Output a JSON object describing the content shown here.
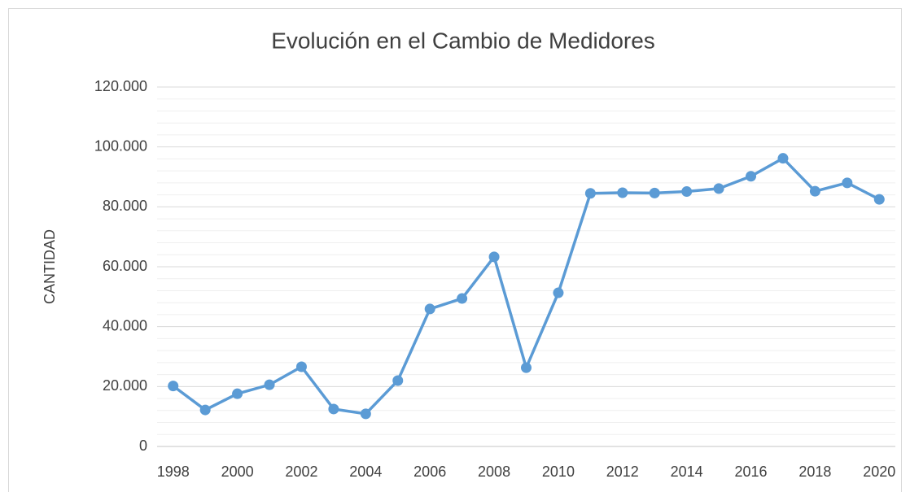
{
  "chart_data": {
    "type": "line",
    "title": "Evolución en el Cambio de Medidores",
    "y_label": "CANTIDAD",
    "x": [
      1998,
      1999,
      2000,
      2001,
      2002,
      2003,
      2004,
      2005,
      2006,
      2007,
      2008,
      2009,
      2010,
      2011,
      2012,
      2013,
      2014,
      2015,
      2016,
      2017,
      2018,
      2019,
      2020
    ],
    "series": [
      {
        "name": "CANTIDAD",
        "color": "#5b9bd5",
        "values": [
          20200,
          12200,
          17600,
          20600,
          26600,
          12500,
          10900,
          22000,
          45900,
          49400,
          63300,
          26300,
          51300,
          84500,
          84700,
          84600,
          85100,
          86100,
          90200,
          96200,
          85200,
          88000,
          82500
        ]
      }
    ],
    "xlim": [
      1997.5,
      2020.5
    ],
    "xticks": [
      1998,
      2000,
      2002,
      2004,
      2006,
      2008,
      2010,
      2012,
      2014,
      2016,
      2018,
      2020
    ],
    "ylim": [
      0,
      120000
    ],
    "yticks": [
      0,
      {
        "value": 20000,
        "label": "20.000"
      },
      {
        "value": 40000,
        "label": "40.000"
      },
      {
        "value": 60000,
        "label": "60.000"
      },
      {
        "value": 80000,
        "label": "80.000"
      },
      {
        "value": 100000,
        "label": "100.000"
      },
      {
        "value": 120000,
        "label": "120.000"
      }
    ],
    "yminorticks": [
      4000,
      8000,
      12000,
      16000,
      24000,
      28000,
      32000,
      36000,
      44000,
      48000,
      52000,
      56000,
      64000,
      68000,
      72000,
      76000,
      84000,
      88000,
      92000,
      96000,
      104000,
      108000,
      112000,
      116000
    ],
    "grid": true
  }
}
